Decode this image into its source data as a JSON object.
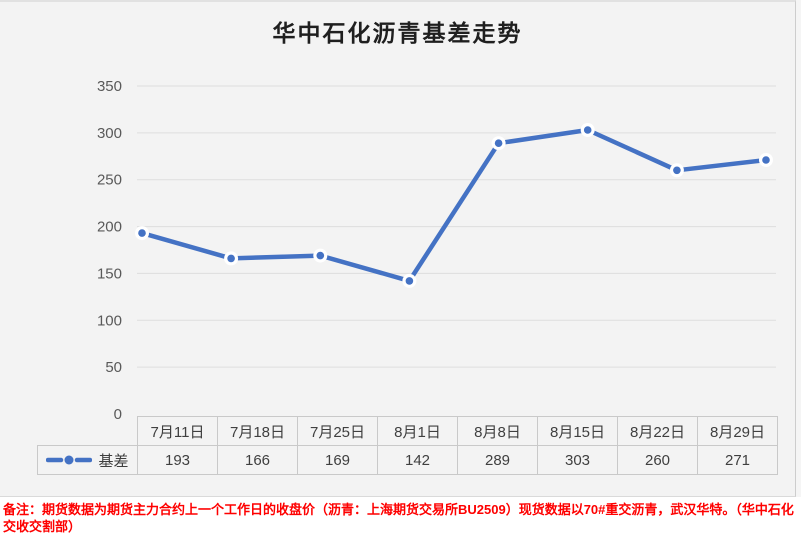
{
  "chart_data": {
    "type": "line",
    "title": "华中石化沥青基差走势",
    "categories": [
      "7月11日",
      "7月18日",
      "7月25日",
      "8月1日",
      "8月8日",
      "8月15日",
      "8月22日",
      "8月29日"
    ],
    "series": [
      {
        "name": "基差",
        "values": [
          193,
          166,
          169,
          142,
          289,
          303,
          260,
          271
        ]
      }
    ],
    "xlabel": "",
    "ylabel": "",
    "ylim": [
      0,
      350
    ],
    "ytick_interval": 50,
    "grid": "horizontal",
    "legend_position": "data-table-left",
    "marker_style": "circle-blue-dot-white-ring",
    "line_color": "#4472C4"
  },
  "note": {
    "text": "备注：期货数据为期货主力合约上一个工作日的收盘价（沥青：上海期货交易所BU2509）现货数据以70#重交沥青，武汉华特。（华中石化交收交割部）"
  },
  "colors": {
    "chart_background": "#F3F3F3",
    "gridline": "#DEDEDE",
    "axis_text": "#595959",
    "table_text": "#3F3F3F",
    "table_border": "#C9C9C9",
    "note_text": "#FE0000",
    "line": "#4472C4",
    "marker_ring": "#FFFFFF"
  }
}
